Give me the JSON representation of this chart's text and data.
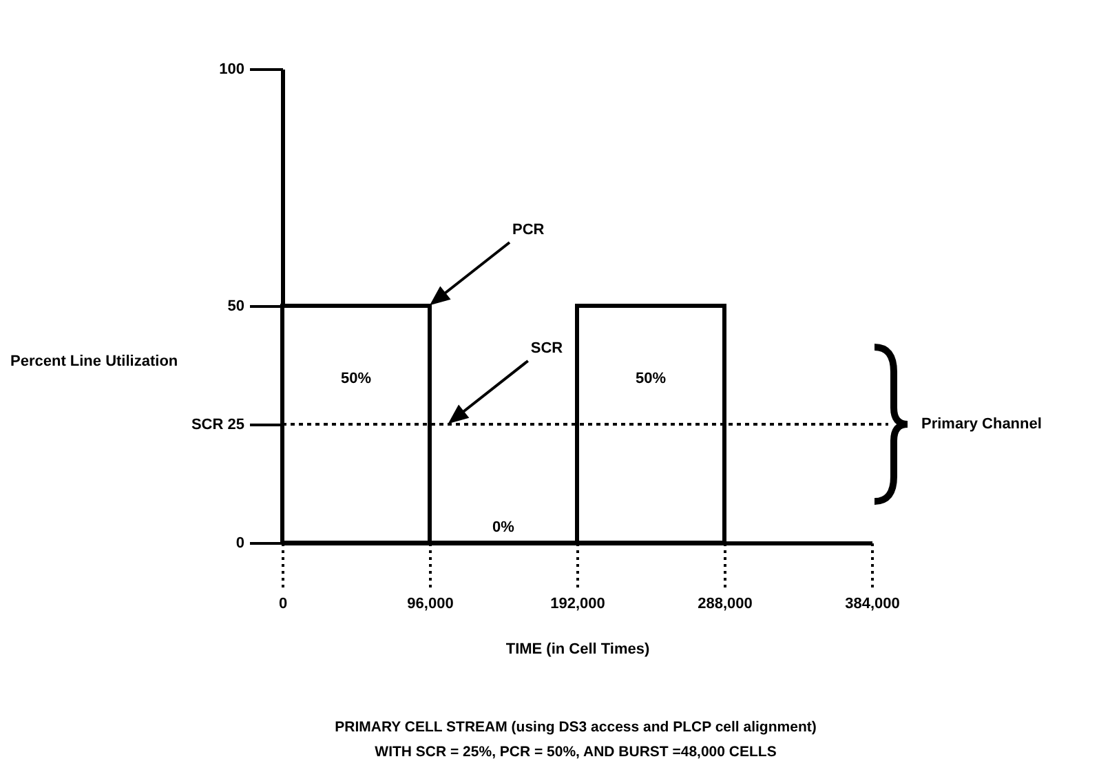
{
  "chart_data": {
    "type": "histogram",
    "xlabel": "TIME (in Cell Times)",
    "ylabel": "Percent Line Utilization",
    "bins": [
      0,
      96000,
      192000,
      288000
    ],
    "values": [
      50,
      0,
      50
    ],
    "value_labels": [
      "50%",
      "0%",
      "50%"
    ],
    "color": "#000000",
    "xlim": [
      0,
      384000
    ],
    "xticks": [
      0,
      {
        "value": 96000,
        "label": "96,000"
      },
      {
        "value": 192000,
        "label": "192,000"
      },
      {
        "value": 288000,
        "label": "288,000"
      },
      {
        "value": 384000,
        "label": "384,000"
      }
    ],
    "ylim": [
      0,
      100
    ],
    "yticks": [
      0,
      {
        "value": 25,
        "label": "SCR 25"
      },
      50,
      100
    ],
    "ref_lines": [
      {
        "axis": "y",
        "value": 25,
        "label": "Primary Channel",
        "line_style": "dotted"
      }
    ],
    "annotations": [
      {
        "text": "PCR",
        "x": 96000,
        "y": 50
      },
      {
        "text": "SCR",
        "x": 108000,
        "y": 25
      },
      "PRIMARY CELL STREAM (using DS3 access and PLCP cell alignment)",
      "WITH SCR = 25%, PCR = 50%, AND BURST =48,000 CELLS"
    ],
    "grid": false
  }
}
